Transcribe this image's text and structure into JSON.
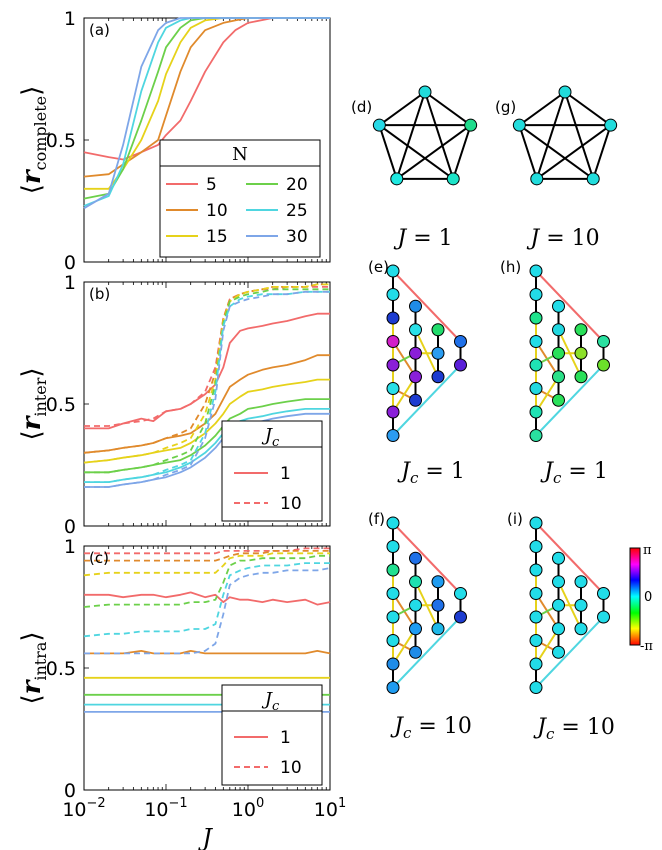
{
  "chart_data": [
    {
      "panel": "(a)",
      "type": "line",
      "ylabel": "⟨r_complete⟩",
      "ylim": [
        0,
        1
      ],
      "yticks": [
        "0",
        "0.5",
        "1"
      ],
      "xscale": "log",
      "xlim": [
        0.01,
        10
      ],
      "legend": {
        "title": "N",
        "placement": "bottom-right",
        "entries": [
          "5",
          "10",
          "15",
          "20",
          "25",
          "30"
        ]
      },
      "series": [
        {
          "name": "5",
          "color": "#f26b6b",
          "x": [
            0.01,
            0.02,
            0.03,
            0.05,
            0.08,
            0.1,
            0.15,
            0.2,
            0.3,
            0.5,
            0.7,
            1,
            2,
            10
          ],
          "y": [
            0.45,
            0.43,
            0.42,
            0.45,
            0.48,
            0.52,
            0.58,
            0.66,
            0.78,
            0.9,
            0.95,
            0.98,
            1.0,
            1.0
          ]
        },
        {
          "name": "10",
          "color": "#e08a2c",
          "x": [
            0.01,
            0.02,
            0.03,
            0.05,
            0.08,
            0.1,
            0.15,
            0.2,
            0.3,
            0.5,
            0.7,
            1,
            2,
            10
          ],
          "y": [
            0.35,
            0.36,
            0.4,
            0.45,
            0.5,
            0.6,
            0.78,
            0.88,
            0.95,
            0.98,
            0.99,
            1.0,
            1.0,
            1.0
          ]
        },
        {
          "name": "15",
          "color": "#e6d21a",
          "x": [
            0.01,
            0.02,
            0.03,
            0.05,
            0.08,
            0.1,
            0.15,
            0.2,
            0.3,
            0.5,
            1,
            10
          ],
          "y": [
            0.3,
            0.3,
            0.38,
            0.5,
            0.66,
            0.77,
            0.9,
            0.96,
            0.99,
            1.0,
            1.0,
            1.0
          ]
        },
        {
          "name": "20",
          "color": "#6cd04a",
          "x": [
            0.01,
            0.02,
            0.03,
            0.05,
            0.08,
            0.1,
            0.15,
            0.2,
            0.3,
            0.5,
            1,
            10
          ],
          "y": [
            0.26,
            0.28,
            0.38,
            0.58,
            0.78,
            0.88,
            0.96,
            0.99,
            1.0,
            1.0,
            1.0,
            1.0
          ]
        },
        {
          "name": "25",
          "color": "#4fd6e0",
          "x": [
            0.01,
            0.02,
            0.03,
            0.05,
            0.08,
            0.1,
            0.15,
            0.2,
            0.3,
            1,
            10
          ],
          "y": [
            0.23,
            0.27,
            0.4,
            0.7,
            0.9,
            0.96,
            0.99,
            1.0,
            1.0,
            1.0,
            1.0
          ]
        },
        {
          "name": "30",
          "color": "#7ea6e8",
          "x": [
            0.01,
            0.02,
            0.03,
            0.05,
            0.08,
            0.1,
            0.15,
            0.2,
            1,
            10
          ],
          "y": [
            0.22,
            0.28,
            0.48,
            0.8,
            0.95,
            0.98,
            1.0,
            1.0,
            1.0,
            1.0
          ]
        }
      ]
    },
    {
      "panel": "(b)",
      "type": "line",
      "ylabel": "⟨r_inter⟩",
      "ylim": [
        0,
        1
      ],
      "yticks": [
        "0",
        "0.5",
        "1"
      ],
      "xscale": "log",
      "xlim": [
        0.01,
        10
      ],
      "legend": {
        "title": "J_c",
        "placement": "bottom-right",
        "entries": [
          "1",
          "10"
        ],
        "styles": [
          "solid",
          "dashed"
        ]
      },
      "x": [
        0.01,
        0.02,
        0.03,
        0.05,
        0.07,
        0.1,
        0.15,
        0.2,
        0.3,
        0.4,
        0.5,
        0.6,
        0.8,
        1,
        1.5,
        2,
        3,
        5,
        7,
        10
      ],
      "series": [
        {
          "name": "1",
          "color": "#f26b6b",
          "style": "solid",
          "y": [
            0.4,
            0.4,
            0.42,
            0.44,
            0.43,
            0.47,
            0.48,
            0.5,
            0.54,
            0.58,
            0.65,
            0.75,
            0.8,
            0.81,
            0.82,
            0.83,
            0.84,
            0.86,
            0.87,
            0.87
          ]
        },
        {
          "name": "1",
          "color": "#e08a2c",
          "style": "solid",
          "y": [
            0.3,
            0.31,
            0.32,
            0.33,
            0.34,
            0.36,
            0.37,
            0.38,
            0.42,
            0.46,
            0.52,
            0.57,
            0.6,
            0.62,
            0.64,
            0.65,
            0.66,
            0.68,
            0.7,
            0.7
          ]
        },
        {
          "name": "1",
          "color": "#e6d21a",
          "style": "solid",
          "y": [
            0.26,
            0.27,
            0.28,
            0.29,
            0.3,
            0.31,
            0.32,
            0.34,
            0.38,
            0.42,
            0.46,
            0.5,
            0.53,
            0.55,
            0.56,
            0.57,
            0.58,
            0.59,
            0.6,
            0.6
          ]
        },
        {
          "name": "1",
          "color": "#6cd04a",
          "style": "solid",
          "y": [
            0.22,
            0.22,
            0.23,
            0.24,
            0.25,
            0.26,
            0.27,
            0.29,
            0.33,
            0.37,
            0.41,
            0.44,
            0.46,
            0.48,
            0.49,
            0.5,
            0.51,
            0.52,
            0.52,
            0.52
          ]
        },
        {
          "name": "1",
          "color": "#4fd6e0",
          "style": "solid",
          "y": [
            0.18,
            0.18,
            0.19,
            0.2,
            0.21,
            0.22,
            0.24,
            0.26,
            0.3,
            0.34,
            0.38,
            0.41,
            0.43,
            0.44,
            0.45,
            0.46,
            0.47,
            0.48,
            0.48,
            0.48
          ]
        },
        {
          "name": "1",
          "color": "#7ea6e8",
          "style": "solid",
          "y": [
            0.16,
            0.16,
            0.17,
            0.18,
            0.19,
            0.2,
            0.22,
            0.24,
            0.28,
            0.32,
            0.36,
            0.39,
            0.41,
            0.42,
            0.43,
            0.44,
            0.45,
            0.46,
            0.46,
            0.46
          ]
        },
        {
          "name": "10",
          "color": "#f26b6b",
          "style": "dashed",
          "y": [
            0.41,
            0.41,
            0.42,
            0.43,
            0.44,
            0.47,
            0.48,
            0.5,
            0.55,
            0.65,
            0.85,
            0.93,
            0.95,
            0.96,
            0.97,
            0.97,
            0.98,
            0.98,
            0.98,
            0.98
          ]
        },
        {
          "name": "10",
          "color": "#e08a2c",
          "style": "dashed",
          "y": [
            0.3,
            0.31,
            0.32,
            0.33,
            0.34,
            0.36,
            0.38,
            0.4,
            0.5,
            0.63,
            0.85,
            0.93,
            0.95,
            0.96,
            0.97,
            0.98,
            0.98,
            0.98,
            0.99,
            0.99
          ]
        },
        {
          "name": "10",
          "color": "#e6d21a",
          "style": "dashed",
          "y": [
            0.26,
            0.27,
            0.28,
            0.29,
            0.3,
            0.32,
            0.34,
            0.36,
            0.46,
            0.6,
            0.84,
            0.92,
            0.95,
            0.96,
            0.97,
            0.98,
            0.98,
            0.98,
            0.99,
            0.99
          ]
        },
        {
          "name": "10",
          "color": "#6cd04a",
          "style": "dashed",
          "y": [
            0.22,
            0.22,
            0.23,
            0.24,
            0.25,
            0.27,
            0.29,
            0.31,
            0.42,
            0.58,
            0.83,
            0.92,
            0.94,
            0.95,
            0.96,
            0.97,
            0.97,
            0.97,
            0.97,
            0.97
          ]
        },
        {
          "name": "10",
          "color": "#4fd6e0",
          "style": "dashed",
          "y": [
            0.18,
            0.18,
            0.19,
            0.2,
            0.21,
            0.23,
            0.25,
            0.27,
            0.38,
            0.55,
            0.82,
            0.9,
            0.93,
            0.94,
            0.95,
            0.95,
            0.95,
            0.96,
            0.96,
            0.96
          ]
        },
        {
          "name": "10",
          "color": "#7ea6e8",
          "style": "dashed",
          "y": [
            0.16,
            0.16,
            0.17,
            0.18,
            0.19,
            0.21,
            0.23,
            0.25,
            0.36,
            0.52,
            0.8,
            0.9,
            0.92,
            0.93,
            0.94,
            0.95,
            0.95,
            0.96,
            0.96,
            0.96
          ]
        }
      ]
    },
    {
      "panel": "(c)",
      "type": "line",
      "ylabel": "⟨r_intra⟩",
      "xlabel": "J",
      "ylim": [
        0,
        1
      ],
      "yticks": [
        "0",
        "0.5",
        "1"
      ],
      "xscale": "log",
      "xlim": [
        0.01,
        10
      ],
      "xticks": [
        "10^-2",
        "10^-1",
        "10^0",
        "10^1"
      ],
      "legend": {
        "title": "J_c",
        "placement": "bottom-right",
        "entries": [
          "1",
          "10"
        ],
        "styles": [
          "solid",
          "dashed"
        ]
      },
      "x": [
        0.01,
        0.02,
        0.03,
        0.05,
        0.07,
        0.1,
        0.15,
        0.2,
        0.3,
        0.4,
        0.5,
        0.6,
        0.8,
        1,
        1.5,
        2,
        3,
        5,
        7,
        10
      ],
      "series": [
        {
          "name": "1",
          "color": "#f26b6b",
          "style": "solid",
          "y": [
            0.8,
            0.8,
            0.79,
            0.8,
            0.8,
            0.79,
            0.8,
            0.81,
            0.79,
            0.8,
            0.77,
            0.79,
            0.78,
            0.78,
            0.77,
            0.78,
            0.77,
            0.78,
            0.76,
            0.77
          ]
        },
        {
          "name": "1",
          "color": "#e08a2c",
          "style": "solid",
          "y": [
            0.56,
            0.56,
            0.56,
            0.57,
            0.56,
            0.56,
            0.56,
            0.57,
            0.56,
            0.56,
            0.56,
            0.56,
            0.56,
            0.56,
            0.56,
            0.56,
            0.56,
            0.56,
            0.57,
            0.56
          ]
        },
        {
          "name": "1",
          "color": "#e6d21a",
          "style": "solid",
          "y": [
            0.46,
            0.46,
            0.46,
            0.46,
            0.46,
            0.46,
            0.46,
            0.46,
            0.46,
            0.46,
            0.46,
            0.46,
            0.46,
            0.46,
            0.46,
            0.46,
            0.46,
            0.46,
            0.46,
            0.46
          ]
        },
        {
          "name": "1",
          "color": "#6cd04a",
          "style": "solid",
          "y": [
            0.39,
            0.39,
            0.39,
            0.39,
            0.39,
            0.39,
            0.39,
            0.39,
            0.39,
            0.39,
            0.39,
            0.39,
            0.39,
            0.39,
            0.39,
            0.39,
            0.39,
            0.39,
            0.39,
            0.39
          ]
        },
        {
          "name": "1",
          "color": "#4fd6e0",
          "style": "solid",
          "y": [
            0.35,
            0.35,
            0.35,
            0.35,
            0.35,
            0.35,
            0.35,
            0.35,
            0.35,
            0.35,
            0.35,
            0.35,
            0.35,
            0.35,
            0.35,
            0.35,
            0.35,
            0.35,
            0.35,
            0.35
          ]
        },
        {
          "name": "1",
          "color": "#7ea6e8",
          "style": "solid",
          "y": [
            0.32,
            0.32,
            0.32,
            0.32,
            0.32,
            0.32,
            0.32,
            0.32,
            0.32,
            0.32,
            0.32,
            0.32,
            0.32,
            0.32,
            0.32,
            0.32,
            0.32,
            0.32,
            0.32,
            0.32
          ]
        },
        {
          "name": "10",
          "color": "#f26b6b",
          "style": "dashed",
          "y": [
            0.97,
            0.97,
            0.97,
            0.97,
            0.97,
            0.97,
            0.97,
            0.97,
            0.97,
            0.97,
            0.98,
            0.98,
            0.98,
            0.98,
            0.98,
            0.98,
            0.98,
            0.99,
            0.99,
            0.99
          ]
        },
        {
          "name": "10",
          "color": "#e08a2c",
          "style": "dashed",
          "y": [
            0.94,
            0.94,
            0.94,
            0.94,
            0.94,
            0.94,
            0.94,
            0.94,
            0.94,
            0.94,
            0.95,
            0.96,
            0.97,
            0.97,
            0.97,
            0.98,
            0.98,
            0.98,
            0.98,
            0.98
          ]
        },
        {
          "name": "10",
          "color": "#e6d21a",
          "style": "dashed",
          "y": [
            0.88,
            0.89,
            0.89,
            0.89,
            0.89,
            0.89,
            0.89,
            0.89,
            0.89,
            0.89,
            0.92,
            0.95,
            0.96,
            0.96,
            0.96,
            0.97,
            0.97,
            0.97,
            0.97,
            0.97
          ]
        },
        {
          "name": "10",
          "color": "#6cd04a",
          "style": "dashed",
          "y": [
            0.75,
            0.76,
            0.76,
            0.76,
            0.76,
            0.76,
            0.76,
            0.77,
            0.77,
            0.78,
            0.85,
            0.92,
            0.94,
            0.94,
            0.95,
            0.95,
            0.95,
            0.95,
            0.96,
            0.96
          ]
        },
        {
          "name": "10",
          "color": "#4fd6e0",
          "style": "dashed",
          "y": [
            0.63,
            0.64,
            0.64,
            0.65,
            0.65,
            0.65,
            0.65,
            0.66,
            0.66,
            0.68,
            0.8,
            0.88,
            0.9,
            0.91,
            0.92,
            0.92,
            0.92,
            0.93,
            0.93,
            0.93
          ]
        },
        {
          "name": "10",
          "color": "#7ea6e8",
          "style": "dashed",
          "y": [
            0.56,
            0.56,
            0.56,
            0.56,
            0.56,
            0.56,
            0.56,
            0.56,
            0.57,
            0.6,
            0.72,
            0.84,
            0.87,
            0.88,
            0.89,
            0.89,
            0.9,
            0.9,
            0.9,
            0.91
          ]
        }
      ]
    },
    {
      "panel": "(d)",
      "type": "network",
      "caption": "J = 1",
      "node_colors": [
        "#22dcdc",
        "#1fdc8c",
        "#1de3c8",
        "#1fe8e0",
        "#26d9e6"
      ]
    },
    {
      "panel": "(g)",
      "type": "network",
      "caption": "J = 10",
      "node_colors": [
        "#22dcdc",
        "#22dcdc",
        "#22dcdc",
        "#22dcdc",
        "#22dcdc"
      ]
    },
    {
      "panel": "(e)",
      "type": "network",
      "caption": "J_c = 1",
      "node_colors": [
        "#22dce8",
        "#22dce8",
        "#1d3cd0",
        "#d21fc8",
        "#8a1fd8",
        "#2ae0e8",
        "#8a1fd8",
        "#2a9cf0",
        "#1f8ce8",
        "#2ae0e8",
        "#8a1fd8",
        "#8a1fd8",
        "#1d3cd0",
        "#22dc6c",
        "#2a9cf0",
        "#1d3cd0",
        "#1f70e8",
        "#5a1fd8"
      ]
    },
    {
      "panel": "(h)",
      "type": "network",
      "caption": "J_c = 1",
      "node_colors": [
        "#22dce8",
        "#22dce8",
        "#1fe38c",
        "#22dce8",
        "#1fe3b4",
        "#22d8e0",
        "#1fe3b4",
        "#2ae0a0",
        "#22dce8",
        "#22d8e0",
        "#2ae05a",
        "#2ae088",
        "#2ae05a",
        "#2ae05a",
        "#8ce02a",
        "#2ae05a",
        "#2ae0a0",
        "#6ce02a"
      ]
    },
    {
      "panel": "(f)",
      "type": "network",
      "caption": "J_c = 10",
      "node_colors": [
        "#22dce8",
        "#22dce8",
        "#22e090",
        "#22dce8",
        "#22dce8",
        "#22dce8",
        "#1f8ce8",
        "#1f9cf0",
        "#1f70e8",
        "#1fe0b0",
        "#22dce8",
        "#1f9cf0",
        "#1f8ce8",
        "#1f9cf0",
        "#1f70e8",
        "#1fb8e8",
        "#22dce8",
        "#1d3cd0"
      ]
    },
    {
      "panel": "(i)",
      "type": "network",
      "caption": "J_c = 10",
      "node_colors": [
        "#22dce8",
        "#22dce8",
        "#22dce8",
        "#22dce8",
        "#22dce8",
        "#22dce8",
        "#22dce8",
        "#22dce8",
        "#22dce8",
        "#22dce8",
        "#22dce8",
        "#22dce8",
        "#22dce8",
        "#22dce8",
        "#22dce8",
        "#22dce8",
        "#22dce8",
        "#22dce8"
      ]
    }
  ],
  "colorbar": {
    "top_label": "π",
    "mid_label": "0",
    "bottom_label": "-π"
  }
}
